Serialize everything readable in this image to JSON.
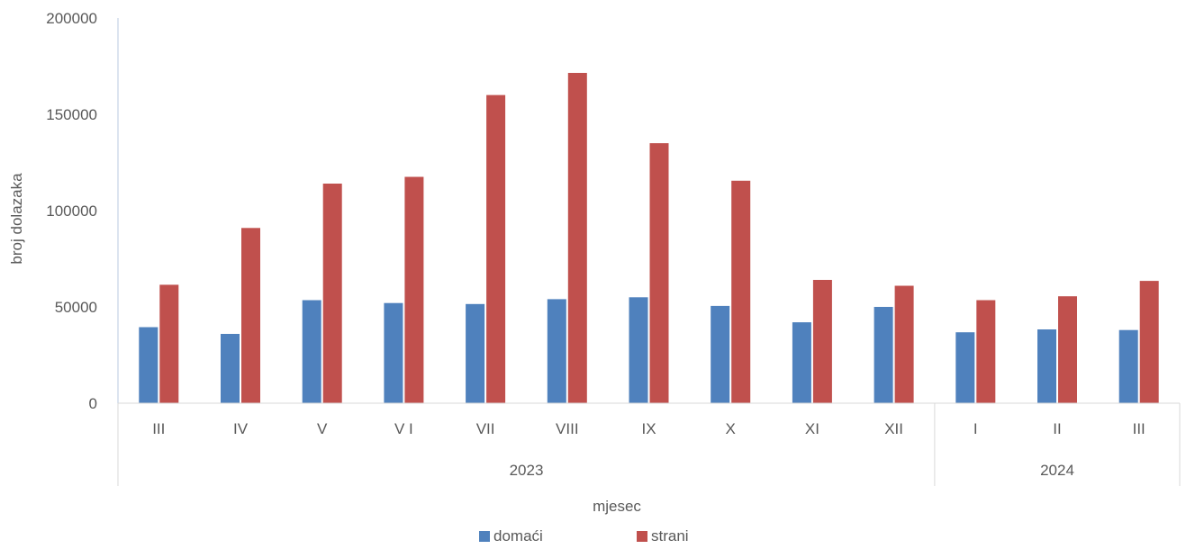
{
  "chart_data": {
    "type": "bar",
    "xlabel": "mjesec",
    "ylabel": "broj dolazaka",
    "ylim": [
      0,
      200000
    ],
    "y_ticks": [
      "0",
      "50000",
      "100000",
      "150000",
      "200000"
    ],
    "categories": [
      "III",
      "IV",
      "V",
      "V I",
      "VII",
      "VIII",
      "IX",
      "X",
      "XI",
      "XII",
      "I",
      "II",
      "III"
    ],
    "groups": [
      {
        "label": "2023",
        "count": 10
      },
      {
        "label": "2024",
        "count": 3
      }
    ],
    "series": [
      {
        "name": "domaći",
        "color": "#4F81BD",
        "values": [
          39500,
          36000,
          53500,
          52000,
          51500,
          54000,
          55000,
          50500,
          42000,
          50000,
          36800,
          38300,
          38000
        ]
      },
      {
        "name": "strani",
        "color": "#C0504D",
        "values": [
          61500,
          91000,
          114000,
          117500,
          160000,
          171500,
          135000,
          115500,
          64000,
          61000,
          53500,
          55500,
          63500
        ]
      }
    ],
    "grid": false,
    "legend_position": "bottom"
  }
}
